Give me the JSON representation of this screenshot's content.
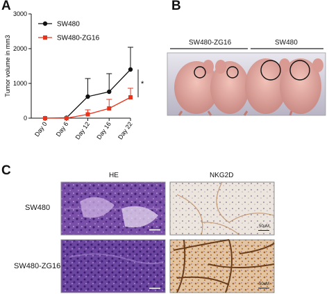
{
  "panels": {
    "A": "A",
    "B": "B",
    "C": "C"
  },
  "chart_data": {
    "type": "line",
    "xlabel": "",
    "ylabel": "Tumor volume in mm3",
    "categories": [
      "Day 0",
      "Day 6",
      "Day 12",
      "Day 16",
      "Day 22"
    ],
    "ylim": [
      0,
      3000
    ],
    "yticks": [
      "0",
      "1000",
      "2000",
      "3000"
    ],
    "series": [
      {
        "name": "SW480",
        "color": "#111111",
        "marker": "circle",
        "values": [
          0,
          10,
          620,
          760,
          1400
        ],
        "error": [
          0,
          0,
          520,
          520,
          640
        ]
      },
      {
        "name": "SW480-ZG16",
        "color": "#e8341c",
        "marker": "square",
        "values": [
          0,
          0,
          110,
          280,
          600
        ],
        "error": [
          0,
          0,
          130,
          260,
          260
        ]
      }
    ],
    "annotation": "*",
    "legend_position": "top-left"
  },
  "panel_b": {
    "label_left": "SW480-ZG16",
    "label_right": "SW480"
  },
  "panel_c": {
    "col_he": "HE",
    "col_nkg2d": "NKG2D",
    "row_1": "SW480",
    "row_2": "SW480-ZG16",
    "scale_bar": "50uM"
  },
  "colors": {
    "he_stain": "#6f4aa0",
    "ihc_stain": "#b06a2a"
  }
}
